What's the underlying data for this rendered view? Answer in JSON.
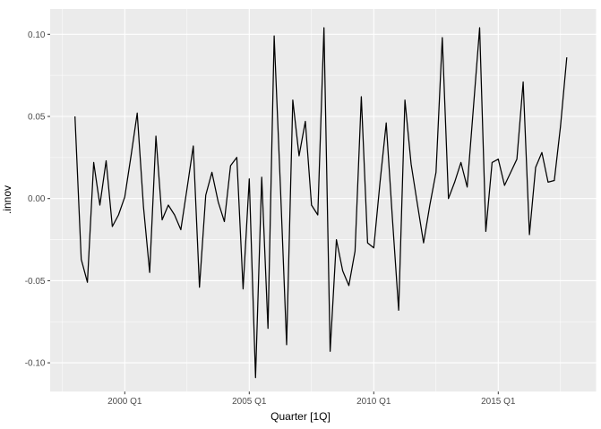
{
  "chart": {
    "panel_bg_color": "#EBEBEB",
    "grid_color": "#FFFFFF",
    "line_color": "#000000",
    "tick_label_color": "#4D4D4D",
    "axis_title_color": "#000000"
  },
  "chart_data": {
    "type": "line",
    "title": "",
    "xlabel": "Quarter [1Q]",
    "ylabel": ".innov",
    "legend": "none",
    "grid": "on",
    "x_tick_labels": [
      "2000 Q1",
      "2005 Q1",
      "2010 Q1",
      "2015 Q1"
    ],
    "x_tick_indices": [
      8,
      28,
      48,
      68
    ],
    "x_minor_indices": [
      -2,
      18,
      38,
      58,
      78
    ],
    "y_tick_values": [
      0.1,
      0.05,
      0.0,
      -0.05,
      -0.1
    ],
    "y_tick_labels": [
      "0.10",
      "0.05",
      "0.00",
      "-0.05",
      "-0.10"
    ],
    "y_minor_values": [
      0.075,
      0.025,
      -0.025,
      -0.075
    ],
    "ylim": [
      -0.117,
      0.115
    ],
    "x": [
      "1998 Q1",
      "1998 Q2",
      "1998 Q3",
      "1998 Q4",
      "1999 Q1",
      "1999 Q2",
      "1999 Q3",
      "1999 Q4",
      "2000 Q1",
      "2000 Q2",
      "2000 Q3",
      "2000 Q4",
      "2001 Q1",
      "2001 Q2",
      "2001 Q3",
      "2001 Q4",
      "2002 Q1",
      "2002 Q2",
      "2002 Q3",
      "2002 Q4",
      "2003 Q1",
      "2003 Q2",
      "2003 Q3",
      "2003 Q4",
      "2004 Q1",
      "2004 Q2",
      "2004 Q3",
      "2004 Q4",
      "2005 Q1",
      "2005 Q2",
      "2005 Q3",
      "2005 Q4",
      "2006 Q1",
      "2006 Q2",
      "2006 Q3",
      "2006 Q4",
      "2007 Q1",
      "2007 Q2",
      "2007 Q3",
      "2007 Q4",
      "2008 Q1",
      "2008 Q2",
      "2008 Q3",
      "2008 Q4",
      "2009 Q1",
      "2009 Q2",
      "2009 Q3",
      "2009 Q4",
      "2010 Q1",
      "2010 Q2",
      "2010 Q3",
      "2010 Q4",
      "2011 Q1",
      "2011 Q2",
      "2011 Q3",
      "2011 Q4",
      "2012 Q1",
      "2012 Q2",
      "2012 Q3",
      "2012 Q4",
      "2013 Q1",
      "2013 Q2",
      "2013 Q3",
      "2013 Q4",
      "2014 Q1",
      "2014 Q2",
      "2014 Q3",
      "2014 Q4",
      "2015 Q1",
      "2015 Q2",
      "2015 Q3",
      "2015 Q4",
      "2016 Q1",
      "2016 Q2",
      "2016 Q3",
      "2016 Q4",
      "2017 Q1",
      "2017 Q2",
      "2017 Q3",
      "2017 Q4"
    ],
    "values": [
      0.05,
      -0.037,
      -0.051,
      0.022,
      -0.004,
      0.023,
      -0.017,
      -0.01,
      0.001,
      0.026,
      0.052,
      -0.005,
      -0.045,
      0.038,
      -0.013,
      -0.004,
      -0.01,
      -0.019,
      0.006,
      0.032,
      -0.054,
      0.002,
      0.016,
      -0.002,
      -0.014,
      0.02,
      0.025,
      -0.055,
      0.012,
      -0.109,
      0.013,
      -0.079,
      0.099,
      0.007,
      -0.089,
      0.06,
      0.026,
      0.047,
      -0.004,
      -0.01,
      0.104,
      -0.093,
      -0.025,
      -0.044,
      -0.053,
      -0.032,
      0.062,
      -0.027,
      -0.03,
      0.01,
      0.046,
      -0.012,
      -0.068,
      0.06,
      0.021,
      -0.003,
      -0.027,
      -0.004,
      0.016,
      0.098,
      0.0,
      0.01,
      0.022,
      0.007,
      0.055,
      0.104,
      -0.02,
      0.022,
      0.024,
      0.008,
      0.016,
      0.024,
      0.071,
      -0.022,
      0.019,
      0.028,
      0.01,
      0.011,
      0.044,
      0.086
    ]
  }
}
